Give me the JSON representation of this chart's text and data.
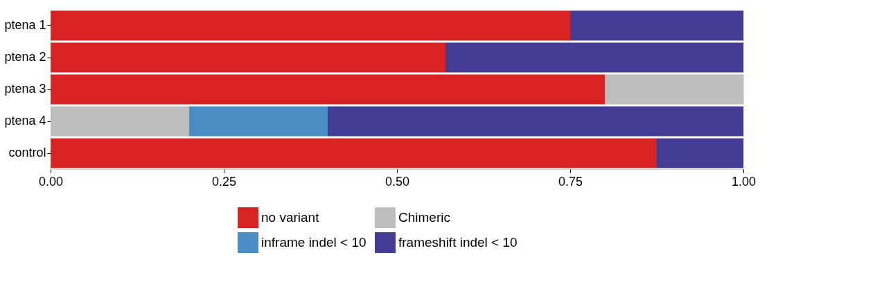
{
  "chart_data": {
    "type": "bar",
    "orientation": "horizontal",
    "stacked": true,
    "categories": [
      "ptena 1",
      "ptena 2",
      "ptena 3",
      "ptena 4",
      "control"
    ],
    "series": [
      {
        "name": "no variant",
        "color": "#d92323",
        "values": [
          0.75,
          0.57,
          0.8,
          0,
          0.875
        ]
      },
      {
        "name": "Chimeric",
        "color": "#bebebe",
        "values": [
          0,
          0,
          0.2,
          0.2,
          0
        ]
      },
      {
        "name": "inframe indel < 10",
        "color": "#4a8cc4",
        "values": [
          0,
          0,
          0,
          0.2,
          0
        ]
      },
      {
        "name": "frameshift indel < 10",
        "color": "#423c94",
        "values": [
          0.25,
          0.43,
          0,
          0.6,
          0.125
        ]
      }
    ],
    "xlim": [
      0,
      1
    ],
    "xticks": [
      {
        "value": 0,
        "label": "0.00"
      },
      {
        "value": 0.25,
        "label": "0.25"
      },
      {
        "value": 0.5,
        "label": "0.50"
      },
      {
        "value": 0.75,
        "label": "0.75"
      },
      {
        "value": 1,
        "label": "1.00"
      }
    ],
    "grid": false,
    "legend": "bottom"
  }
}
